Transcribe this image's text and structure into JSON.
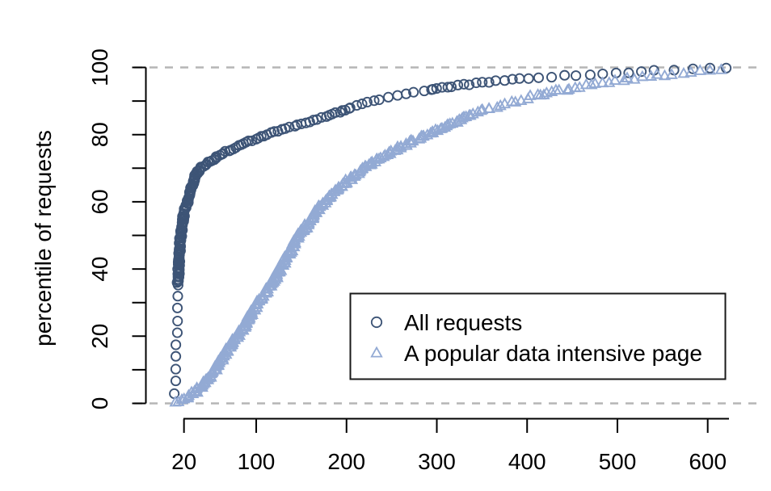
{
  "chart_data": {
    "type": "scatter",
    "title": "",
    "xlabel": "",
    "ylabel": "percentile of requests",
    "xlim": [
      -22,
      660
    ],
    "ylim": [
      0,
      100
    ],
    "x_ticks": [
      20,
      100,
      200,
      300,
      400,
      500,
      600
    ],
    "y_ticks": [
      0,
      10,
      20,
      30,
      40,
      50,
      60,
      70,
      80,
      90,
      100
    ],
    "y_tick_labels": [
      0,
      20,
      40,
      60,
      80,
      100
    ],
    "grid": "off",
    "reference_lines": {
      "horizontal_at": [
        0,
        100
      ],
      "style": "dashed",
      "color": "#b5b5b5"
    },
    "legend": {
      "position": "inside bottom-right",
      "border": true,
      "entries": [
        "All requests",
        "A popular data intensive page"
      ]
    },
    "series": [
      {
        "name": "All requests",
        "marker": "circle",
        "color": "#3d5476",
        "cdf_value_percentile": [
          [
            8,
            0
          ],
          [
            10,
            3
          ],
          [
            10.5,
            8
          ],
          [
            11,
            13
          ],
          [
            11.5,
            17
          ],
          [
            12,
            22
          ],
          [
            12.5,
            26
          ],
          [
            13,
            31
          ],
          [
            13.5,
            36
          ],
          [
            14,
            40
          ],
          [
            15,
            45
          ],
          [
            16,
            49
          ],
          [
            18,
            53
          ],
          [
            20,
            57
          ],
          [
            24,
            60
          ],
          [
            28,
            64
          ],
          [
            33,
            68
          ],
          [
            38,
            70
          ],
          [
            48,
            72
          ],
          [
            60,
            74
          ],
          [
            75,
            76
          ],
          [
            95,
            78.3
          ],
          [
            120,
            80.8
          ],
          [
            150,
            83.2
          ],
          [
            180,
            85.6
          ],
          [
            205,
            88
          ],
          [
            235,
            90.4
          ],
          [
            265,
            92
          ],
          [
            295,
            93.5
          ],
          [
            325,
            94.7
          ],
          [
            365,
            95.9
          ],
          [
            405,
            96.9
          ],
          [
            450,
            97.6
          ],
          [
            495,
            98.3
          ],
          [
            540,
            99
          ],
          [
            580,
            99.4
          ],
          [
            615,
            99.8
          ],
          [
            628,
            100
          ]
        ],
        "marker_sampling_percentile_steps": [
          {
            "from": 3,
            "to": 36,
            "step": 3.6
          },
          {
            "from": 36,
            "to": 88,
            "step": 0.35
          },
          {
            "from": 88,
            "to": 93.5,
            "step": 0.5
          },
          {
            "from": 93.5,
            "to": 99.9,
            "step": 0.22
          }
        ]
      },
      {
        "name": "A popular data intensive page",
        "marker": "triangle",
        "color": "#93aad4",
        "cdf_value_percentile": [
          [
            4,
            0
          ],
          [
            14,
            0.7
          ],
          [
            22,
            1.5
          ],
          [
            28,
            2.5
          ],
          [
            35,
            4
          ],
          [
            42,
            6
          ],
          [
            50,
            8.5
          ],
          [
            58,
            11.5
          ],
          [
            66,
            15
          ],
          [
            74,
            18
          ],
          [
            82,
            21
          ],
          [
            90,
            24.5
          ],
          [
            100,
            29
          ],
          [
            110,
            33
          ],
          [
            122,
            38
          ],
          [
            134,
            43.5
          ],
          [
            145,
            49
          ],
          [
            158,
            54
          ],
          [
            170,
            58.5
          ],
          [
            186,
            63
          ],
          [
            200,
            66
          ],
          [
            214,
            69
          ],
          [
            230,
            72
          ],
          [
            247,
            74.5
          ],
          [
            265,
            77
          ],
          [
            283,
            79.2
          ],
          [
            300,
            81.3
          ],
          [
            315,
            83
          ],
          [
            335,
            85.6
          ],
          [
            360,
            88
          ],
          [
            390,
            90.2
          ],
          [
            420,
            92.2
          ],
          [
            450,
            93.8
          ],
          [
            480,
            95.2
          ],
          [
            510,
            96.4
          ],
          [
            540,
            97.5
          ],
          [
            570,
            98.4
          ],
          [
            600,
            99.2
          ],
          [
            628,
            99.8
          ]
        ],
        "marker_sampling_percentile_steps": [
          {
            "from": 0.4,
            "to": 3,
            "step": 0.33
          },
          {
            "from": 3,
            "to": 86,
            "step": 0.28
          },
          {
            "from": 86,
            "to": 92,
            "step": 0.4
          },
          {
            "from": 92,
            "to": 99.8,
            "step": 0.28
          }
        ]
      }
    ]
  }
}
